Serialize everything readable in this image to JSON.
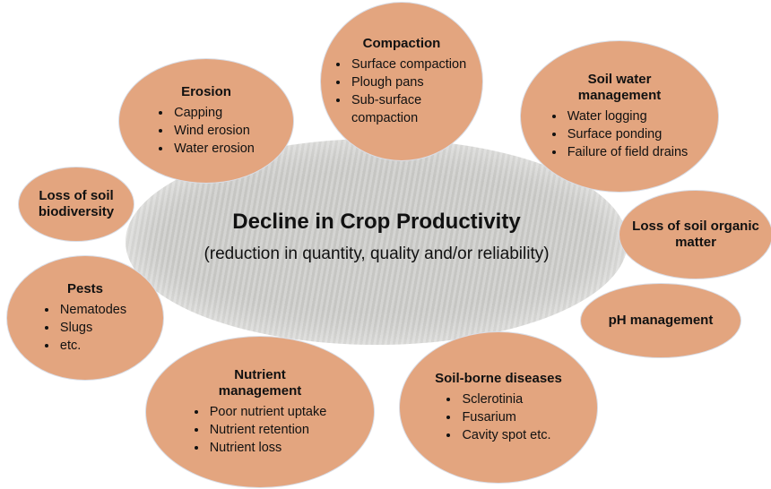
{
  "center": {
    "title": "Decline in Crop Productivity",
    "subtitle": "(reduction in quantity, quality and/or reliability)"
  },
  "nodes": [
    {
      "title": "Compaction",
      "items": [
        "Surface compaction",
        "Plough pans",
        "Sub-surface compaction"
      ]
    },
    {
      "title": "Erosion",
      "items": [
        "Capping",
        "Wind erosion",
        "Water erosion"
      ]
    },
    {
      "title": "Soil water management",
      "items": [
        "Water logging",
        "Surface ponding",
        "Failure of field drains"
      ]
    },
    {
      "title": "Loss of soil biodiversity",
      "items": []
    },
    {
      "title": "Loss of soil organic matter",
      "items": []
    },
    {
      "title": "Pests",
      "items": [
        "Nematodes",
        "Slugs",
        "etc."
      ]
    },
    {
      "title": "pH management",
      "items": []
    },
    {
      "title": "Nutrient management",
      "items": [
        "Poor nutrient uptake",
        "Nutrient retention",
        "Nutrient loss"
      ]
    },
    {
      "title": "Soil-borne diseases",
      "items": [
        "Sclerotinia",
        "Fusarium",
        "Cavity spot etc."
      ]
    }
  ]
}
